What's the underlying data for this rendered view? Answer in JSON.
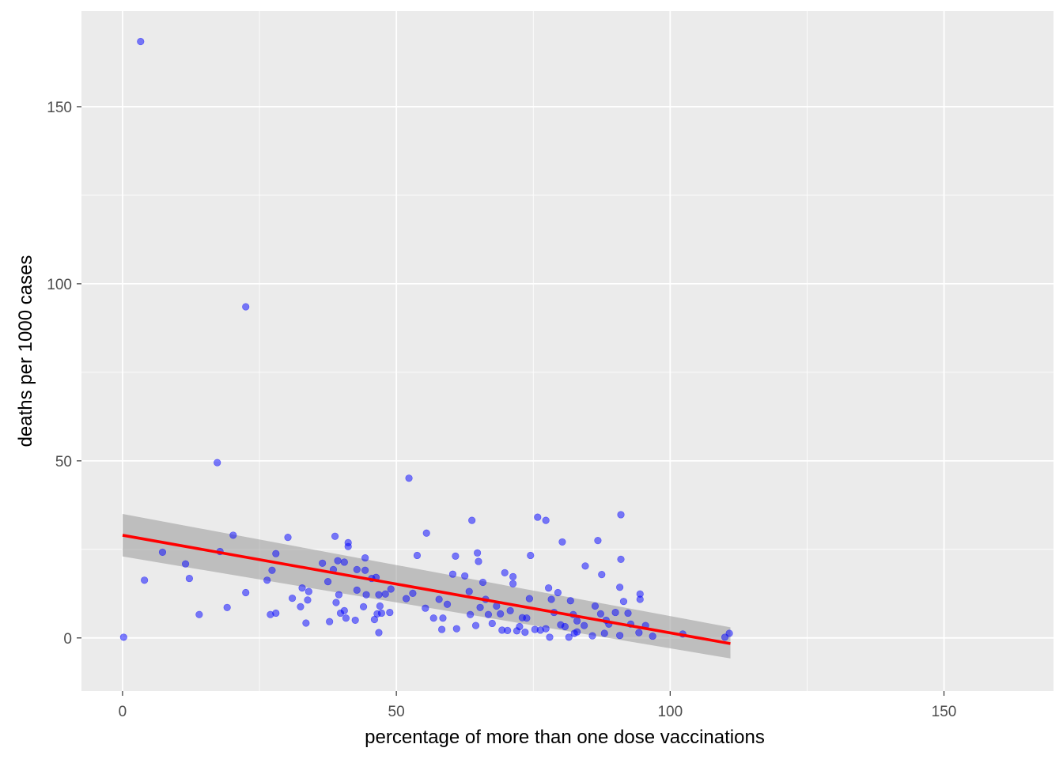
{
  "chart_data": {
    "type": "scatter",
    "title": "",
    "xlabel": "percentage of more than one dose vaccinations",
    "ylabel": "deaths per 1000 cases",
    "xlim": [
      -7.5,
      170
    ],
    "ylim": [
      -15,
      177
    ],
    "x_ticks": [
      0,
      50,
      100,
      150
    ],
    "x_tick_labels": [
      "0",
      "50",
      "100",
      "150"
    ],
    "y_ticks": [
      0,
      50,
      100,
      150
    ],
    "y_tick_labels": [
      "0",
      "50",
      "100",
      "150"
    ],
    "x_minor": [
      25,
      75,
      125
    ],
    "y_minor": [
      25,
      75,
      125
    ],
    "grid": true,
    "background": "#EBEBEB",
    "colors": {
      "points": "#0000FF",
      "point_opacity": 0.5,
      "trend": "#FF0000",
      "confidence_band": "#999999",
      "grid": "#FFFFFF",
      "tick_text": "#4D4D4D",
      "title_text": "#000000"
    },
    "points": [
      {
        "x": 0.2,
        "y": 0.2
      },
      {
        "x": 3.3,
        "y": 168.4
      },
      {
        "x": 4.0,
        "y": 16.3
      },
      {
        "x": 7.3,
        "y": 24.2
      },
      {
        "x": 11.5,
        "y": 20.9
      },
      {
        "x": 12.2,
        "y": 16.8
      },
      {
        "x": 14.0,
        "y": 6.6
      },
      {
        "x": 17.3,
        "y": 49.5
      },
      {
        "x": 17.8,
        "y": 24.4
      },
      {
        "x": 19.1,
        "y": 8.6
      },
      {
        "x": 20.2,
        "y": 29.0
      },
      {
        "x": 22.5,
        "y": 93.5
      },
      {
        "x": 22.5,
        "y": 12.8
      },
      {
        "x": 26.4,
        "y": 16.3
      },
      {
        "x": 27.0,
        "y": 6.6
      },
      {
        "x": 27.3,
        "y": 19.1
      },
      {
        "x": 28.0,
        "y": 7.0
      },
      {
        "x": 28.0,
        "y": 23.8
      },
      {
        "x": 30.2,
        "y": 28.4
      },
      {
        "x": 31.0,
        "y": 11.2
      },
      {
        "x": 32.5,
        "y": 8.8
      },
      {
        "x": 32.8,
        "y": 14.1
      },
      {
        "x": 33.5,
        "y": 4.2
      },
      {
        "x": 33.8,
        "y": 10.7
      },
      {
        "x": 34.0,
        "y": 13.1
      },
      {
        "x": 36.5,
        "y": 21.1
      },
      {
        "x": 37.5,
        "y": 15.9
      },
      {
        "x": 37.8,
        "y": 4.6
      },
      {
        "x": 38.5,
        "y": 19.3
      },
      {
        "x": 38.8,
        "y": 28.7
      },
      {
        "x": 39.0,
        "y": 10.0
      },
      {
        "x": 39.3,
        "y": 21.8
      },
      {
        "x": 39.5,
        "y": 12.2
      },
      {
        "x": 39.8,
        "y": 7.0
      },
      {
        "x": 40.5,
        "y": 7.7
      },
      {
        "x": 40.5,
        "y": 21.4
      },
      {
        "x": 40.8,
        "y": 5.6
      },
      {
        "x": 41.2,
        "y": 26.9
      },
      {
        "x": 41.2,
        "y": 25.8
      },
      {
        "x": 42.5,
        "y": 5.0
      },
      {
        "x": 42.8,
        "y": 19.3
      },
      {
        "x": 42.8,
        "y": 13.5
      },
      {
        "x": 44.0,
        "y": 8.8
      },
      {
        "x": 44.3,
        "y": 22.6
      },
      {
        "x": 44.3,
        "y": 19.1
      },
      {
        "x": 44.5,
        "y": 12.2
      },
      {
        "x": 45.5,
        "y": 16.8
      },
      {
        "x": 46.0,
        "y": 5.2
      },
      {
        "x": 46.3,
        "y": 17.1
      },
      {
        "x": 46.5,
        "y": 6.8
      },
      {
        "x": 46.8,
        "y": 12.2
      },
      {
        "x": 46.8,
        "y": 1.5
      },
      {
        "x": 47.0,
        "y": 9.0
      },
      {
        "x": 47.3,
        "y": 7.0
      },
      {
        "x": 48.0,
        "y": 12.4
      },
      {
        "x": 48.8,
        "y": 7.2
      },
      {
        "x": 49.0,
        "y": 13.8
      },
      {
        "x": 51.8,
        "y": 11.1
      },
      {
        "x": 52.3,
        "y": 45.1
      },
      {
        "x": 53.0,
        "y": 12.6
      },
      {
        "x": 53.8,
        "y": 23.3
      },
      {
        "x": 55.3,
        "y": 8.4
      },
      {
        "x": 55.5,
        "y": 29.6
      },
      {
        "x": 56.8,
        "y": 5.6
      },
      {
        "x": 57.8,
        "y": 10.9
      },
      {
        "x": 58.3,
        "y": 2.4
      },
      {
        "x": 58.5,
        "y": 5.6
      },
      {
        "x": 59.3,
        "y": 9.5
      },
      {
        "x": 60.3,
        "y": 18.0
      },
      {
        "x": 60.8,
        "y": 23.1
      },
      {
        "x": 61.0,
        "y": 2.6
      },
      {
        "x": 62.5,
        "y": 17.5
      },
      {
        "x": 63.3,
        "y": 13.1
      },
      {
        "x": 63.5,
        "y": 6.6
      },
      {
        "x": 63.8,
        "y": 33.2
      },
      {
        "x": 64.5,
        "y": 3.5
      },
      {
        "x": 64.8,
        "y": 24.0
      },
      {
        "x": 65.0,
        "y": 21.6
      },
      {
        "x": 65.3,
        "y": 8.6
      },
      {
        "x": 65.8,
        "y": 15.7
      },
      {
        "x": 66.3,
        "y": 10.9
      },
      {
        "x": 66.8,
        "y": 6.6
      },
      {
        "x": 67.5,
        "y": 4.1
      },
      {
        "x": 68.3,
        "y": 9.0
      },
      {
        "x": 69.0,
        "y": 6.8
      },
      {
        "x": 69.3,
        "y": 2.2
      },
      {
        "x": 69.8,
        "y": 18.4
      },
      {
        "x": 70.3,
        "y": 2.1
      },
      {
        "x": 70.8,
        "y": 7.7
      },
      {
        "x": 71.3,
        "y": 17.3
      },
      {
        "x": 71.3,
        "y": 15.3
      },
      {
        "x": 72.0,
        "y": 2.0
      },
      {
        "x": 72.5,
        "y": 3.2
      },
      {
        "x": 73.0,
        "y": 5.7
      },
      {
        "x": 73.5,
        "y": 1.6
      },
      {
        "x": 73.8,
        "y": 5.6
      },
      {
        "x": 74.3,
        "y": 11.1
      },
      {
        "x": 74.5,
        "y": 23.3
      },
      {
        "x": 75.3,
        "y": 2.4
      },
      {
        "x": 75.8,
        "y": 34.1
      },
      {
        "x": 76.3,
        "y": 2.2
      },
      {
        "x": 77.3,
        "y": 33.2
      },
      {
        "x": 77.3,
        "y": 2.6
      },
      {
        "x": 77.8,
        "y": 14.1
      },
      {
        "x": 78.0,
        "y": 0.2
      },
      {
        "x": 78.3,
        "y": 10.9
      },
      {
        "x": 78.8,
        "y": 7.2
      },
      {
        "x": 79.5,
        "y": 12.8
      },
      {
        "x": 80.0,
        "y": 3.7
      },
      {
        "x": 80.3,
        "y": 27.1
      },
      {
        "x": 80.8,
        "y": 3.2
      },
      {
        "x": 81.5,
        "y": 0.2
      },
      {
        "x": 81.8,
        "y": 10.5
      },
      {
        "x": 82.3,
        "y": 6.6
      },
      {
        "x": 82.5,
        "y": 1.3
      },
      {
        "x": 83.0,
        "y": 1.7
      },
      {
        "x": 83.0,
        "y": 4.8
      },
      {
        "x": 84.3,
        "y": 3.5
      },
      {
        "x": 84.5,
        "y": 20.3
      },
      {
        "x": 85.8,
        "y": 0.6
      },
      {
        "x": 86.3,
        "y": 9.0
      },
      {
        "x": 86.8,
        "y": 27.5
      },
      {
        "x": 87.3,
        "y": 6.8
      },
      {
        "x": 87.5,
        "y": 17.9
      },
      {
        "x": 88.0,
        "y": 1.3
      },
      {
        "x": 88.3,
        "y": 5.0
      },
      {
        "x": 88.8,
        "y": 3.9
      },
      {
        "x": 90.0,
        "y": 7.2
      },
      {
        "x": 90.8,
        "y": 0.7
      },
      {
        "x": 90.8,
        "y": 14.3
      },
      {
        "x": 91.0,
        "y": 34.8
      },
      {
        "x": 91.0,
        "y": 22.2
      },
      {
        "x": 91.5,
        "y": 10.3
      },
      {
        "x": 92.3,
        "y": 7.0
      },
      {
        "x": 92.8,
        "y": 3.9
      },
      {
        "x": 94.3,
        "y": 1.5
      },
      {
        "x": 94.5,
        "y": 12.4
      },
      {
        "x": 94.5,
        "y": 10.9
      },
      {
        "x": 95.5,
        "y": 3.5
      },
      {
        "x": 96.8,
        "y": 0.5
      },
      {
        "x": 102.3,
        "y": 1.1
      },
      {
        "x": 110.0,
        "y": 0.2
      },
      {
        "x": 110.8,
        "y": 1.3
      }
    ],
    "trend_line": {
      "x": [
        0,
        111.0
      ],
      "y": [
        29.0,
        -1.6
      ]
    },
    "confidence_band": {
      "x": [
        0,
        111.0
      ],
      "lower": [
        23.0,
        -5.8
      ],
      "upper": [
        35.0,
        3.0
      ]
    }
  }
}
